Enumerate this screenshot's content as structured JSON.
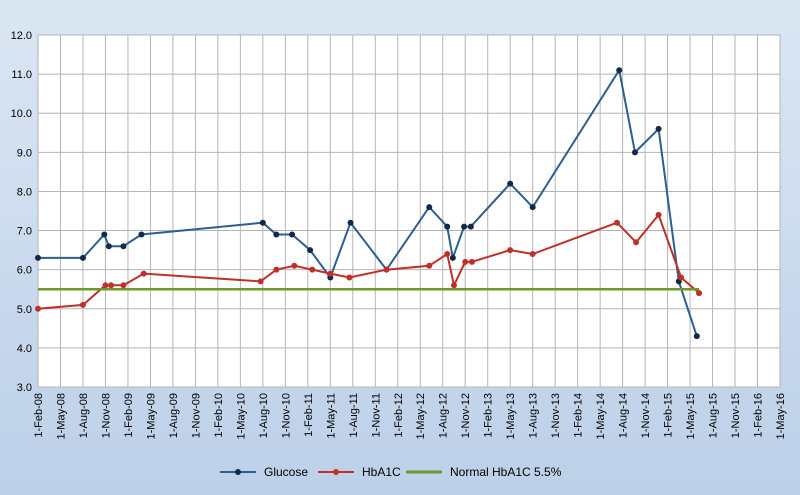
{
  "chart_data": {
    "type": "line",
    "title": "",
    "xlabel": "",
    "ylabel": "",
    "ylim": [
      3.0,
      12.0
    ],
    "yticks": [
      "3.0",
      "4.0",
      "5.0",
      "6.0",
      "7.0",
      "8.0",
      "9.0",
      "10.0",
      "11.0",
      "12.0"
    ],
    "x_tick_labels": [
      "1-Feb-08",
      "1-May-08",
      "1-Aug-08",
      "1-Nov-08",
      "1-Feb-09",
      "1-May-09",
      "1-Aug-09",
      "1-Nov-09",
      "1-Feb-10",
      "1-May-10",
      "1-Aug-10",
      "1-Nov-10",
      "1-Feb-11",
      "1-May-11",
      "1-Aug-11",
      "1-Nov-11",
      "1-Feb-12",
      "1-May-12",
      "1-Aug-12",
      "1-Nov-12",
      "1-Feb-13",
      "1-May-13",
      "1-Aug-13",
      "1-Nov-13",
      "1-Feb-14",
      "1-May-14",
      "1-Aug-14",
      "1-Nov-14",
      "1-Feb-15",
      "1-May-15",
      "1-Aug-15",
      "1-Nov-15",
      "1-Feb-16",
      "1-May-16"
    ],
    "x_unit": "quarters since 1-Feb-08",
    "grid": true,
    "legend_position": "bottom",
    "series": [
      {
        "name": "Glucose",
        "color": "#2e5f8e",
        "marker": true,
        "points": [
          [
            0,
            6.3
          ],
          [
            2,
            6.3
          ],
          [
            2.95,
            6.9
          ],
          [
            3.15,
            6.6
          ],
          [
            3.8,
            6.6
          ],
          [
            4.6,
            6.9
          ],
          [
            10.0,
            7.2
          ],
          [
            10.6,
            6.9
          ],
          [
            11.3,
            6.9
          ],
          [
            12.1,
            6.5
          ],
          [
            13.0,
            5.8
          ],
          [
            13.9,
            7.2
          ],
          [
            15.5,
            6.0
          ],
          [
            17.4,
            7.6
          ],
          [
            18.2,
            7.1
          ],
          [
            18.45,
            6.3
          ],
          [
            18.95,
            7.1
          ],
          [
            19.25,
            7.1
          ],
          [
            21.0,
            8.2
          ],
          [
            22.0,
            7.6
          ],
          [
            25.85,
            11.1
          ],
          [
            26.55,
            9.0
          ],
          [
            27.6,
            9.6
          ],
          [
            28.5,
            5.7
          ],
          [
            29.3,
            4.3
          ]
        ]
      },
      {
        "name": "HbA1C",
        "color": "#c0302a",
        "marker": true,
        "points": [
          [
            0,
            5.0
          ],
          [
            2,
            5.1
          ],
          [
            3.0,
            5.6
          ],
          [
            3.25,
            5.6
          ],
          [
            3.8,
            5.6
          ],
          [
            4.7,
            5.9
          ],
          [
            9.9,
            5.7
          ],
          [
            10.6,
            6.0
          ],
          [
            11.4,
            6.1
          ],
          [
            12.2,
            6.0
          ],
          [
            13.0,
            5.9
          ],
          [
            13.85,
            5.8
          ],
          [
            15.5,
            6.0
          ],
          [
            17.4,
            6.1
          ],
          [
            18.2,
            6.4
          ],
          [
            18.5,
            5.6
          ],
          [
            19.0,
            6.2
          ],
          [
            19.3,
            6.2
          ],
          [
            21.0,
            6.5
          ],
          [
            22.0,
            6.4
          ],
          [
            25.75,
            7.2
          ],
          [
            26.6,
            6.7
          ],
          [
            27.6,
            7.4
          ],
          [
            28.6,
            5.8
          ],
          [
            29.4,
            5.4
          ]
        ]
      },
      {
        "name": "Normal HbA1C 5.5%",
        "color": "#6f9a2a",
        "marker": false,
        "points": [
          [
            0,
            5.5
          ],
          [
            29.4,
            5.5
          ]
        ]
      }
    ]
  }
}
